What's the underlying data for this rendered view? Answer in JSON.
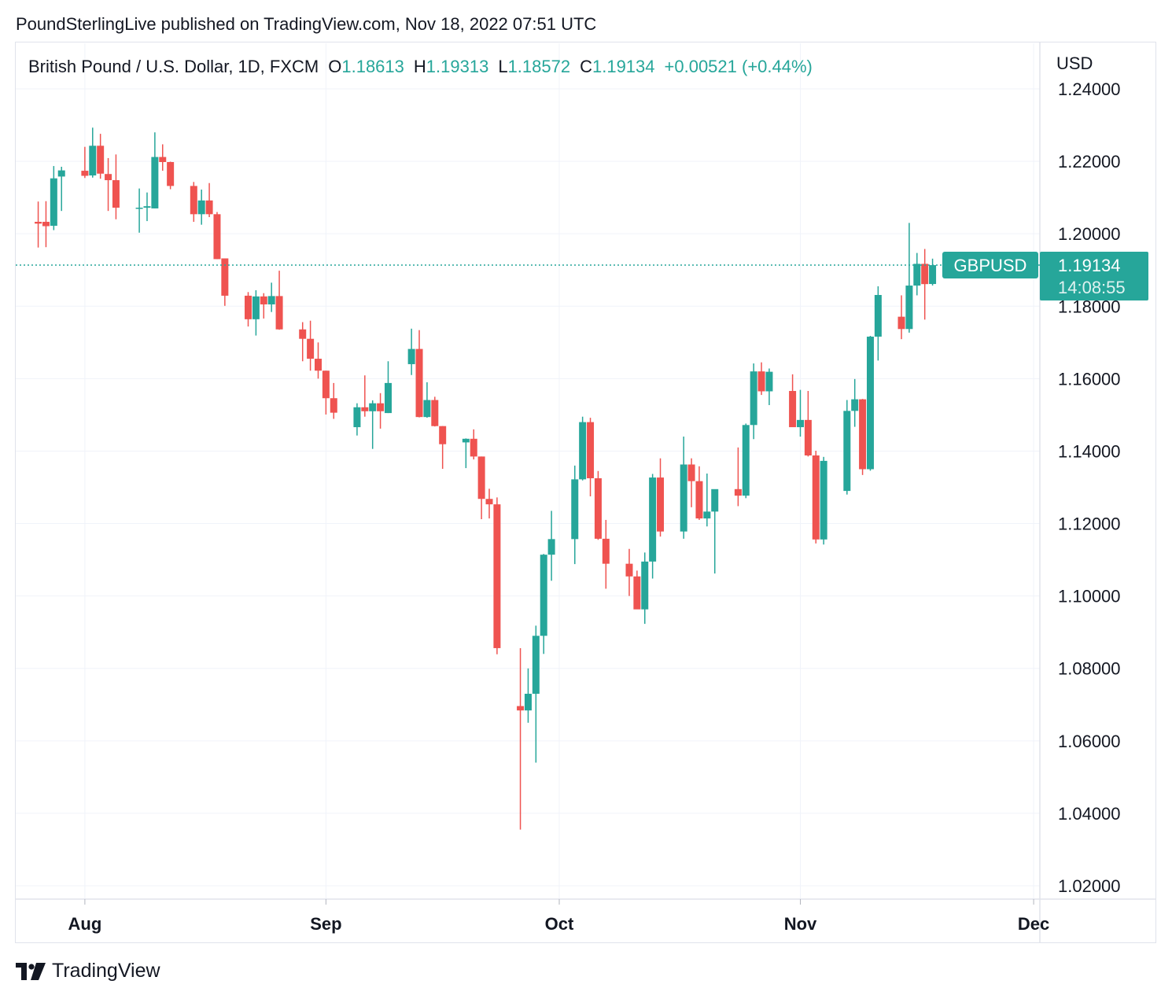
{
  "header": {
    "published_by": "PoundSterlingLive published on TradingView.com, Nov 18, 2022 07:51 UTC"
  },
  "legend": {
    "symbol": "British Pound / U.S. Dollar, 1D, FXCM",
    "open_label": "O",
    "open": "1.18613",
    "high_label": "H",
    "high": "1.19313",
    "low_label": "L",
    "low": "1.18572",
    "close_label": "C",
    "close": "1.19134",
    "change": "+0.00521 (+0.44%)"
  },
  "price_axis": {
    "currency": "USD",
    "ticks": [
      "1.24000",
      "1.22000",
      "1.20000",
      "1.18000",
      "1.16000",
      "1.14000",
      "1.12000",
      "1.10000",
      "1.08000",
      "1.06000",
      "1.04000",
      "1.02000"
    ]
  },
  "time_axis": {
    "ticks": [
      "Aug",
      "Sep",
      "Oct",
      "Nov",
      "Dec"
    ]
  },
  "last_price": {
    "symbol_tag": "GBPUSD",
    "price": "1.19134",
    "countdown": "14:08:55"
  },
  "footer": {
    "brand": "TradingView"
  },
  "colors": {
    "up": "#26a69a",
    "down": "#ef5350",
    "grid": "#f0f3fa",
    "axis_text": "#131722",
    "last_price_bg": "#26a69a"
  },
  "chart_data": {
    "type": "candlestick",
    "title": "British Pound / U.S. Dollar, 1D, FXCM",
    "ylabel": "USD",
    "ylim": [
      1.0155,
      1.2455
    ],
    "x_range": [
      "2022-07-26",
      "2022-12-05"
    ],
    "grid": true,
    "last_price": 1.19134,
    "candles": [
      {
        "date": "2022-07-26",
        "open": 1.2033,
        "high": 1.2089,
        "low": 1.1962,
        "close": 1.2028
      },
      {
        "date": "2022-07-27",
        "open": 1.2033,
        "high": 1.209,
        "low": 1.1963,
        "close": 1.2021
      },
      {
        "date": "2022-07-28",
        "open": 1.2022,
        "high": 1.2187,
        "low": 1.201,
        "close": 1.2153
      },
      {
        "date": "2022-07-29",
        "open": 1.2158,
        "high": 1.2185,
        "low": 1.2063,
        "close": 1.2175
      },
      {
        "date": "2022-08-01",
        "open": 1.2174,
        "high": 1.224,
        "low": 1.2154,
        "close": 1.216
      },
      {
        "date": "2022-08-02",
        "open": 1.2161,
        "high": 1.2293,
        "low": 1.2155,
        "close": 1.2243
      },
      {
        "date": "2022-08-03",
        "open": 1.2243,
        "high": 1.2276,
        "low": 1.2152,
        "close": 1.2166
      },
      {
        "date": "2022-08-04",
        "open": 1.2165,
        "high": 1.2209,
        "low": 1.2063,
        "close": 1.2148
      },
      {
        "date": "2022-08-05",
        "open": 1.2148,
        "high": 1.2219,
        "low": 1.204,
        "close": 1.2072
      },
      {
        "date": "2022-08-08",
        "open": 1.2072,
        "high": 1.2125,
        "low": 1.2003,
        "close": 1.2072
      },
      {
        "date": "2022-08-09",
        "open": 1.2072,
        "high": 1.2114,
        "low": 1.2035,
        "close": 1.2076
      },
      {
        "date": "2022-08-10",
        "open": 1.207,
        "high": 1.228,
        "low": 1.207,
        "close": 1.2212
      },
      {
        "date": "2022-08-11",
        "open": 1.2212,
        "high": 1.2247,
        "low": 1.2174,
        "close": 1.2198
      },
      {
        "date": "2022-08-12",
        "open": 1.2198,
        "high": 1.2199,
        "low": 1.2123,
        "close": 1.2132
      },
      {
        "date": "2022-08-15",
        "open": 1.2132,
        "high": 1.2143,
        "low": 1.2033,
        "close": 1.2054
      },
      {
        "date": "2022-08-16",
        "open": 1.2054,
        "high": 1.2122,
        "low": 1.2025,
        "close": 1.2092
      },
      {
        "date": "2022-08-17",
        "open": 1.2092,
        "high": 1.214,
        "low": 1.2046,
        "close": 1.2054
      },
      {
        "date": "2022-08-18",
        "open": 1.2054,
        "high": 1.206,
        "low": 1.193,
        "close": 1.193
      },
      {
        "date": "2022-08-19",
        "open": 1.1932,
        "high": 1.1932,
        "low": 1.1801,
        "close": 1.1829
      },
      {
        "date": "2022-08-22",
        "open": 1.1829,
        "high": 1.1839,
        "low": 1.1744,
        "close": 1.1764
      },
      {
        "date": "2022-08-23",
        "open": 1.1764,
        "high": 1.1844,
        "low": 1.1719,
        "close": 1.1827
      },
      {
        "date": "2022-08-24",
        "open": 1.1827,
        "high": 1.1836,
        "low": 1.1766,
        "close": 1.1805
      },
      {
        "date": "2022-08-25",
        "open": 1.1805,
        "high": 1.1865,
        "low": 1.1784,
        "close": 1.1828
      },
      {
        "date": "2022-08-26",
        "open": 1.1828,
        "high": 1.1898,
        "low": 1.1735,
        "close": 1.1736
      },
      {
        "date": "2022-08-29",
        "open": 1.1736,
        "high": 1.1756,
        "low": 1.1648,
        "close": 1.171
      },
      {
        "date": "2022-08-30",
        "open": 1.171,
        "high": 1.176,
        "low": 1.1622,
        "close": 1.1655
      },
      {
        "date": "2022-08-31",
        "open": 1.1655,
        "high": 1.17,
        "low": 1.16,
        "close": 1.1622
      },
      {
        "date": "2022-09-01",
        "open": 1.1622,
        "high": 1.1622,
        "low": 1.1501,
        "close": 1.1546
      },
      {
        "date": "2022-09-02",
        "open": 1.1546,
        "high": 1.1588,
        "low": 1.1489,
        "close": 1.1506
      },
      {
        "date": "2022-09-05",
        "open": 1.1466,
        "high": 1.1532,
        "low": 1.1443,
        "close": 1.1521
      },
      {
        "date": "2022-09-06",
        "open": 1.1521,
        "high": 1.1609,
        "low": 1.1495,
        "close": 1.151
      },
      {
        "date": "2022-09-07",
        "open": 1.151,
        "high": 1.154,
        "low": 1.1406,
        "close": 1.1532
      },
      {
        "date": "2022-09-08",
        "open": 1.1532,
        "high": 1.156,
        "low": 1.1462,
        "close": 1.151
      },
      {
        "date": "2022-09-09",
        "open": 1.1505,
        "high": 1.1648,
        "low": 1.1505,
        "close": 1.1588
      },
      {
        "date": "2022-09-12",
        "open": 1.164,
        "high": 1.1738,
        "low": 1.161,
        "close": 1.1682
      },
      {
        "date": "2022-09-13",
        "open": 1.1682,
        "high": 1.1734,
        "low": 1.1493,
        "close": 1.1494
      },
      {
        "date": "2022-09-14",
        "open": 1.1494,
        "high": 1.159,
        "low": 1.1492,
        "close": 1.1541
      },
      {
        "date": "2022-09-15",
        "open": 1.1541,
        "high": 1.155,
        "low": 1.1468,
        "close": 1.1469
      },
      {
        "date": "2022-09-16",
        "open": 1.1469,
        "high": 1.1469,
        "low": 1.1351,
        "close": 1.1419
      },
      {
        "date": "2022-09-19",
        "open": 1.1424,
        "high": 1.1435,
        "low": 1.1353,
        "close": 1.1434
      },
      {
        "date": "2022-09-20",
        "open": 1.1434,
        "high": 1.146,
        "low": 1.1377,
        "close": 1.1385
      },
      {
        "date": "2022-09-21",
        "open": 1.1385,
        "high": 1.1385,
        "low": 1.1212,
        "close": 1.1268
      },
      {
        "date": "2022-09-22",
        "open": 1.1268,
        "high": 1.1296,
        "low": 1.1214,
        "close": 1.1253
      },
      {
        "date": "2022-09-23",
        "open": 1.1253,
        "high": 1.1272,
        "low": 1.0839,
        "close": 1.0856
      },
      {
        "date": "2022-09-26",
        "open": 1.0696,
        "high": 1.0856,
        "low": 1.0355,
        "close": 1.0684
      },
      {
        "date": "2022-09-27",
        "open": 1.0684,
        "high": 1.08,
        "low": 1.065,
        "close": 1.073
      },
      {
        "date": "2022-09-28",
        "open": 1.073,
        "high": 1.0918,
        "low": 1.054,
        "close": 1.089
      },
      {
        "date": "2022-09-29",
        "open": 1.089,
        "high": 1.1116,
        "low": 1.084,
        "close": 1.1114
      },
      {
        "date": "2022-09-30",
        "open": 1.1114,
        "high": 1.1235,
        "low": 1.1042,
        "close": 1.1157
      },
      {
        "date": "2022-10-03",
        "open": 1.1157,
        "high": 1.136,
        "low": 1.1088,
        "close": 1.1322
      },
      {
        "date": "2022-10-04",
        "open": 1.1322,
        "high": 1.1495,
        "low": 1.1319,
        "close": 1.148
      },
      {
        "date": "2022-10-05",
        "open": 1.148,
        "high": 1.1492,
        "low": 1.1275,
        "close": 1.1325
      },
      {
        "date": "2022-10-06",
        "open": 1.1325,
        "high": 1.1345,
        "low": 1.1155,
        "close": 1.1158
      },
      {
        "date": "2022-10-07",
        "open": 1.1158,
        "high": 1.121,
        "low": 1.102,
        "close": 1.1089
      },
      {
        "date": "2022-10-10",
        "open": 1.1089,
        "high": 1.113,
        "low": 1.1,
        "close": 1.1054
      },
      {
        "date": "2022-10-11",
        "open": 1.1054,
        "high": 1.107,
        "low": 1.0968,
        "close": 1.0963
      },
      {
        "date": "2022-10-12",
        "open": 1.0963,
        "high": 1.112,
        "low": 1.0923,
        "close": 1.1095
      },
      {
        "date": "2022-10-13",
        "open": 1.1095,
        "high": 1.1337,
        "low": 1.1048,
        "close": 1.1327
      },
      {
        "date": "2022-10-14",
        "open": 1.1327,
        "high": 1.138,
        "low": 1.1164,
        "close": 1.1178
      },
      {
        "date": "2022-10-17",
        "open": 1.1178,
        "high": 1.144,
        "low": 1.1158,
        "close": 1.1363
      },
      {
        "date": "2022-10-18",
        "open": 1.1363,
        "high": 1.138,
        "low": 1.1245,
        "close": 1.1317
      },
      {
        "date": "2022-10-19",
        "open": 1.1317,
        "high": 1.1358,
        "low": 1.121,
        "close": 1.1214
      },
      {
        "date": "2022-10-20",
        "open": 1.1214,
        "high": 1.1338,
        "low": 1.1192,
        "close": 1.1233
      },
      {
        "date": "2022-10-21",
        "open": 1.1233,
        "high": 1.128,
        "low": 1.1062,
        "close": 1.1295
      },
      {
        "date": "2022-10-24",
        "open": 1.1295,
        "high": 1.141,
        "low": 1.1248,
        "close": 1.1277
      },
      {
        "date": "2022-10-25",
        "open": 1.1277,
        "high": 1.1476,
        "low": 1.127,
        "close": 1.1472
      },
      {
        "date": "2022-10-26",
        "open": 1.1472,
        "high": 1.1642,
        "low": 1.1433,
        "close": 1.162
      },
      {
        "date": "2022-10-27",
        "open": 1.162,
        "high": 1.1645,
        "low": 1.1555,
        "close": 1.1565
      },
      {
        "date": "2022-10-28",
        "open": 1.1565,
        "high": 1.1628,
        "low": 1.1527,
        "close": 1.1619
      },
      {
        "date": "2022-10-31",
        "open": 1.1566,
        "high": 1.1612,
        "low": 1.1468,
        "close": 1.1466
      },
      {
        "date": "2022-11-01",
        "open": 1.1466,
        "high": 1.1569,
        "low": 1.144,
        "close": 1.1486
      },
      {
        "date": "2022-11-02",
        "open": 1.1486,
        "high": 1.1566,
        "low": 1.1385,
        "close": 1.1388
      },
      {
        "date": "2022-11-03",
        "open": 1.1388,
        "high": 1.1401,
        "low": 1.1145,
        "close": 1.1156
      },
      {
        "date": "2022-11-04",
        "open": 1.1156,
        "high": 1.1384,
        "low": 1.1142,
        "close": 1.1373
      },
      {
        "date": "2022-11-07",
        "open": 1.129,
        "high": 1.1541,
        "low": 1.128,
        "close": 1.1511
      },
      {
        "date": "2022-11-08",
        "open": 1.1511,
        "high": 1.1599,
        "low": 1.1467,
        "close": 1.1543
      },
      {
        "date": "2022-11-09",
        "open": 1.1543,
        "high": 1.1544,
        "low": 1.1334,
        "close": 1.135
      },
      {
        "date": "2022-11-10",
        "open": 1.135,
        "high": 1.1718,
        "low": 1.1346,
        "close": 1.1716
      },
      {
        "date": "2022-11-11",
        "open": 1.1716,
        "high": 1.1855,
        "low": 1.165,
        "close": 1.1831
      },
      {
        "date": "2022-11-14",
        "open": 1.1771,
        "high": 1.183,
        "low": 1.1709,
        "close": 1.1737
      },
      {
        "date": "2022-11-15",
        "open": 1.1737,
        "high": 1.203,
        "low": 1.1727,
        "close": 1.1857
      },
      {
        "date": "2022-11-16",
        "open": 1.1857,
        "high": 1.1947,
        "low": 1.183,
        "close": 1.1917
      },
      {
        "date": "2022-11-17",
        "open": 1.1917,
        "high": 1.1958,
        "low": 1.1763,
        "close": 1.1861
      },
      {
        "date": "2022-11-18",
        "open": 1.18613,
        "high": 1.19313,
        "low": 1.18572,
        "close": 1.19134
      }
    ]
  }
}
